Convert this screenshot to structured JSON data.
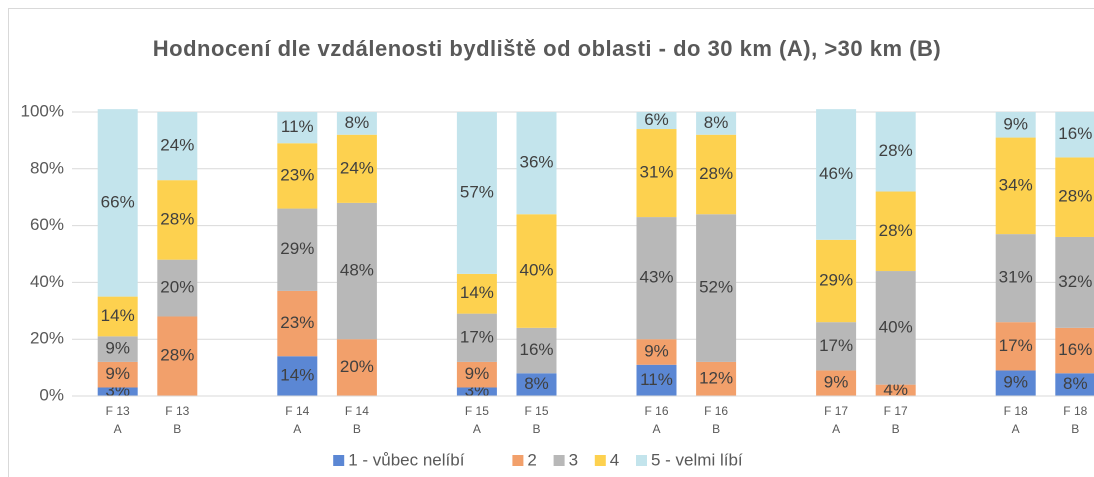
{
  "chart_data": {
    "type": "stacked_bar",
    "title": "Hodnocení dle vzdálenosti bydliště od oblasti - do 30 km (A), >30 km (B)",
    "categories": [
      "F 13 A",
      "F 13 B",
      "F 14 A",
      "F 14 B",
      "F 15 A",
      "F 15 B",
      "F 16 A",
      "F 16 B",
      "F 17 A",
      "F 17 B",
      "F 18 A",
      "F 18 B"
    ],
    "series": [
      {
        "name": "1 - vůbec nelíbí",
        "color": "#5b87d4",
        "values": [
          3,
          null,
          14,
          null,
          3,
          8,
          11,
          null,
          null,
          null,
          9,
          8
        ],
        "value_labels": [
          "3%",
          null,
          "14%",
          null,
          "3%",
          "8%",
          "11%",
          null,
          null,
          null,
          "9%",
          "8%"
        ]
      },
      {
        "name": "2",
        "color": "#f2a06b",
        "values": [
          9,
          28,
          23,
          20,
          9,
          null,
          9,
          12,
          9,
          4,
          17,
          16
        ],
        "value_labels": [
          "9%",
          "28%",
          "23%",
          "20%",
          "9%",
          null,
          "9%",
          "12%",
          "9%",
          "4%",
          "17%",
          "16%"
        ]
      },
      {
        "name": "3",
        "color": "#b8b8b8",
        "values": [
          9,
          20,
          29,
          48,
          17,
          16,
          43,
          52,
          17,
          40,
          31,
          32
        ],
        "value_labels": [
          "9%",
          "20%",
          "29%",
          "48%",
          "17%",
          "16%",
          "43%",
          "52%",
          "17%",
          "40%",
          "31%",
          "32%"
        ]
      },
      {
        "name": "4",
        "color": "#fdd14f",
        "values": [
          14,
          28,
          23,
          24,
          14,
          40,
          31,
          28,
          29,
          28,
          34,
          28
        ],
        "value_labels": [
          "14%",
          "28%",
          "23%",
          "24%",
          "14%",
          "40%",
          "31%",
          "28%",
          "29%",
          "28%",
          "34%",
          "28%"
        ]
      },
      {
        "name": "5 - velmi líbí",
        "color": "#c3e4ec",
        "values": [
          66,
          24,
          11,
          8,
          57,
          36,
          6,
          8,
          46,
          28,
          9,
          16
        ],
        "value_labels": [
          "66%",
          "24%",
          "11%",
          "8%",
          "57%",
          "36%",
          "6%",
          "8%",
          "46%",
          "28%",
          "9%",
          "16%"
        ]
      }
    ],
    "ylim": [
      0,
      100
    ],
    "yticks": [
      {
        "value": 0,
        "label": "0%"
      },
      {
        "value": 20,
        "label": "20%"
      },
      {
        "value": 40,
        "label": "40%"
      },
      {
        "value": 60,
        "label": "60%"
      },
      {
        "value": 80,
        "label": "80%"
      },
      {
        "value": 100,
        "label": "100%"
      }
    ],
    "grid": true,
    "legend": "bottom"
  }
}
